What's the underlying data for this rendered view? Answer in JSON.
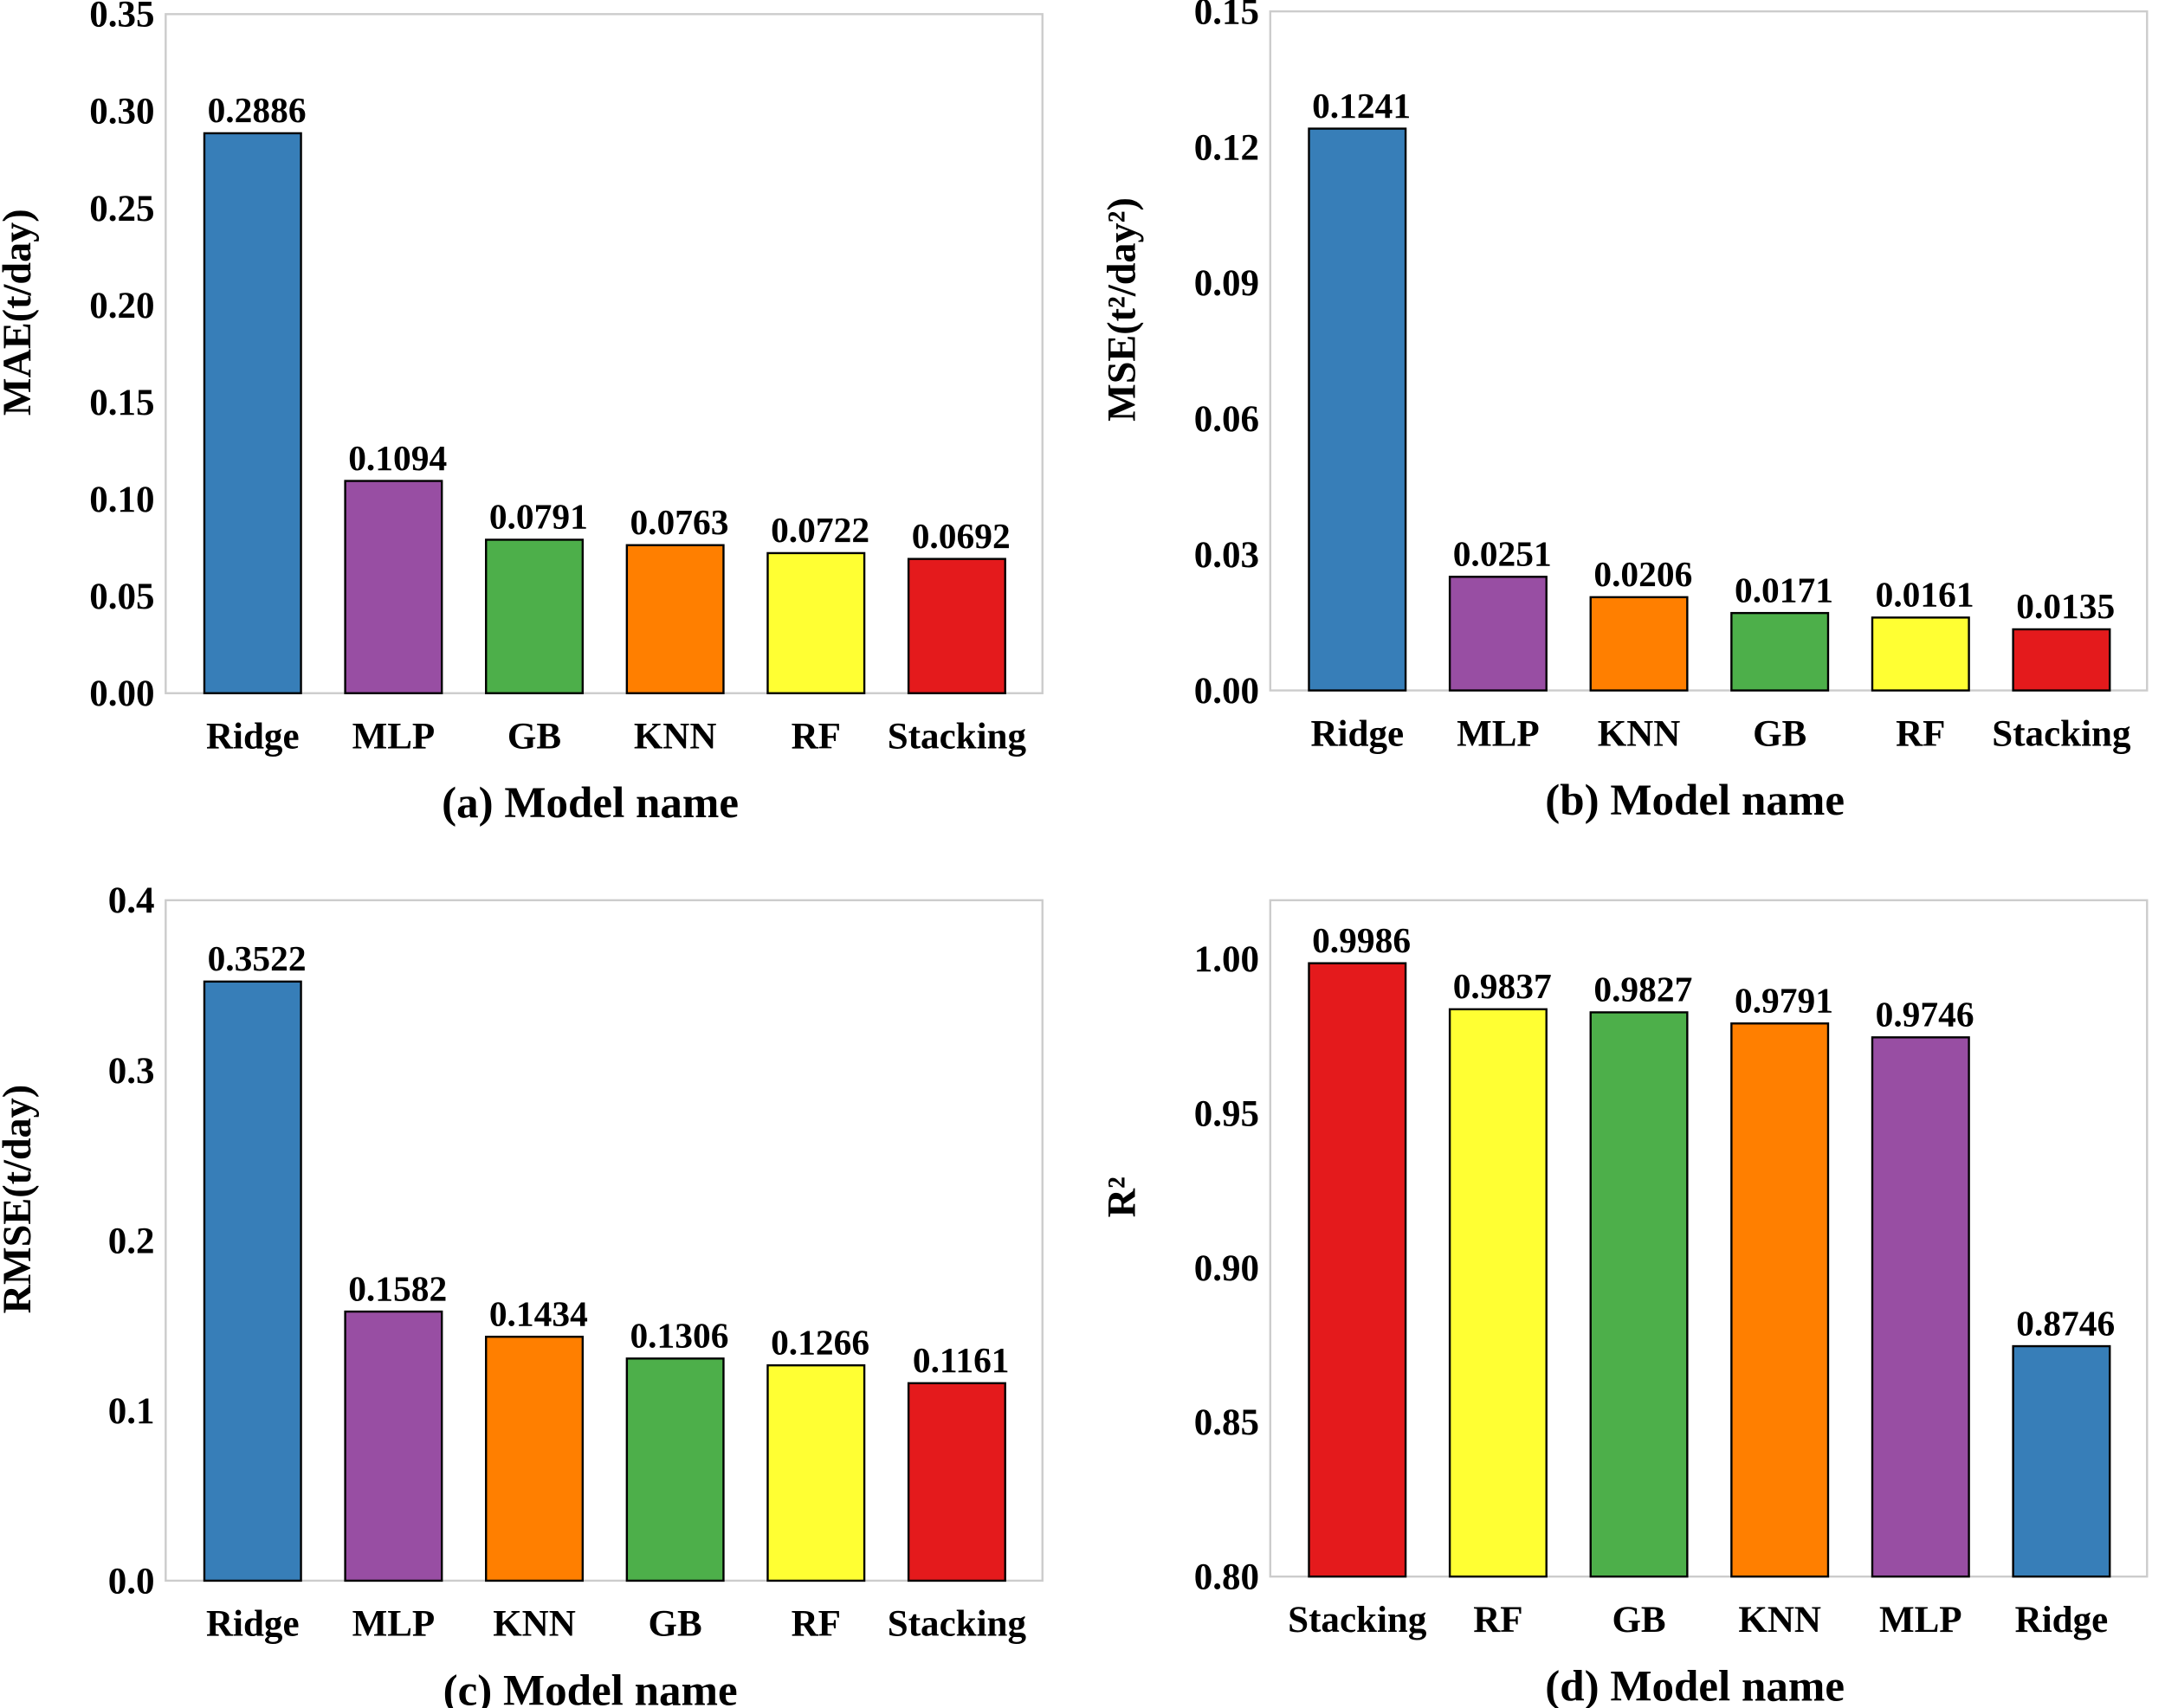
{
  "colors": {
    "Ridge": "#377eb8",
    "MLP": "#984ea3",
    "GB": "#4daf4a",
    "KNN": "#ff7f00",
    "RF": "#ffff33",
    "Stacking": "#e41a1c"
  },
  "chart_data": [
    {
      "type": "bar",
      "title": "",
      "xlabel": "(a) Model name",
      "ylabel": "MAE(t/day)",
      "categories": [
        "Ridge",
        "MLP",
        "GB",
        "KNN",
        "RF",
        "Stacking"
      ],
      "values": [
        0.2886,
        0.1094,
        0.0791,
        0.0763,
        0.0722,
        0.0692
      ],
      "value_labels": [
        "0.2886",
        "0.1094",
        "0.0791",
        "0.0763",
        "0.0722",
        "0.0692"
      ],
      "ylim": [
        0,
        0.35
      ],
      "yticks": [
        0,
        0.05,
        0.1,
        0.15,
        0.2,
        0.25,
        0.3,
        0.35
      ],
      "ytick_labels": [
        "0.00",
        "0.05",
        "0.10",
        "0.15",
        "0.20",
        "0.25",
        "0.30",
        "0.35"
      ],
      "grid": false
    },
    {
      "type": "bar",
      "title": "",
      "xlabel": "(b) Model name",
      "ylabel": "MSE(t²/day²)",
      "categories": [
        "Ridge",
        "MLP",
        "KNN",
        "GB",
        "RF",
        "Stacking"
      ],
      "values": [
        0.1241,
        0.0251,
        0.0206,
        0.0171,
        0.0161,
        0.0135
      ],
      "value_labels": [
        "0.1241",
        "0.0251",
        "0.0206",
        "0.0171",
        "0.0161",
        "0.0135"
      ],
      "ylim": [
        0,
        0.15
      ],
      "yticks": [
        0,
        0.03,
        0.06,
        0.09,
        0.12,
        0.15
      ],
      "ytick_labels": [
        "0.00",
        "0.03",
        "0.06",
        "0.09",
        "0.12",
        "0.15"
      ],
      "grid": false
    },
    {
      "type": "bar",
      "title": "",
      "xlabel": "(c) Model name",
      "ylabel": "RMSE(t/day)",
      "categories": [
        "Ridge",
        "MLP",
        "KNN",
        "GB",
        "RF",
        "Stacking"
      ],
      "values": [
        0.3522,
        0.1582,
        0.1434,
        0.1306,
        0.1266,
        0.1161
      ],
      "value_labels": [
        "0.3522",
        "0.1582",
        "0.1434",
        "0.1306",
        "0.1266",
        "0.1161"
      ],
      "ylim": [
        0,
        0.4
      ],
      "yticks": [
        0,
        0.1,
        0.2,
        0.3,
        0.4
      ],
      "ytick_labels": [
        "0.0",
        "0.1",
        "0.2",
        "0.3",
        "0.4"
      ],
      "grid": false
    },
    {
      "type": "bar",
      "title": "",
      "xlabel": "(d) Model name",
      "ylabel": "R²",
      "categories": [
        "Stacking",
        "RF",
        "GB",
        "KNN",
        "MLP",
        "Ridge"
      ],
      "values": [
        0.9986,
        0.9837,
        0.9827,
        0.9791,
        0.9746,
        0.8746
      ],
      "value_labels": [
        "0.9986",
        "0.9837",
        "0.9827",
        "0.9791",
        "0.9746",
        "0.8746"
      ],
      "ylim": [
        0.8,
        1.019
      ],
      "yticks": [
        0.8,
        0.85,
        0.9,
        0.95,
        1.0
      ],
      "ytick_labels": [
        "0.80",
        "0.85",
        "0.90",
        "0.95",
        "1.00"
      ],
      "grid": false
    }
  ]
}
